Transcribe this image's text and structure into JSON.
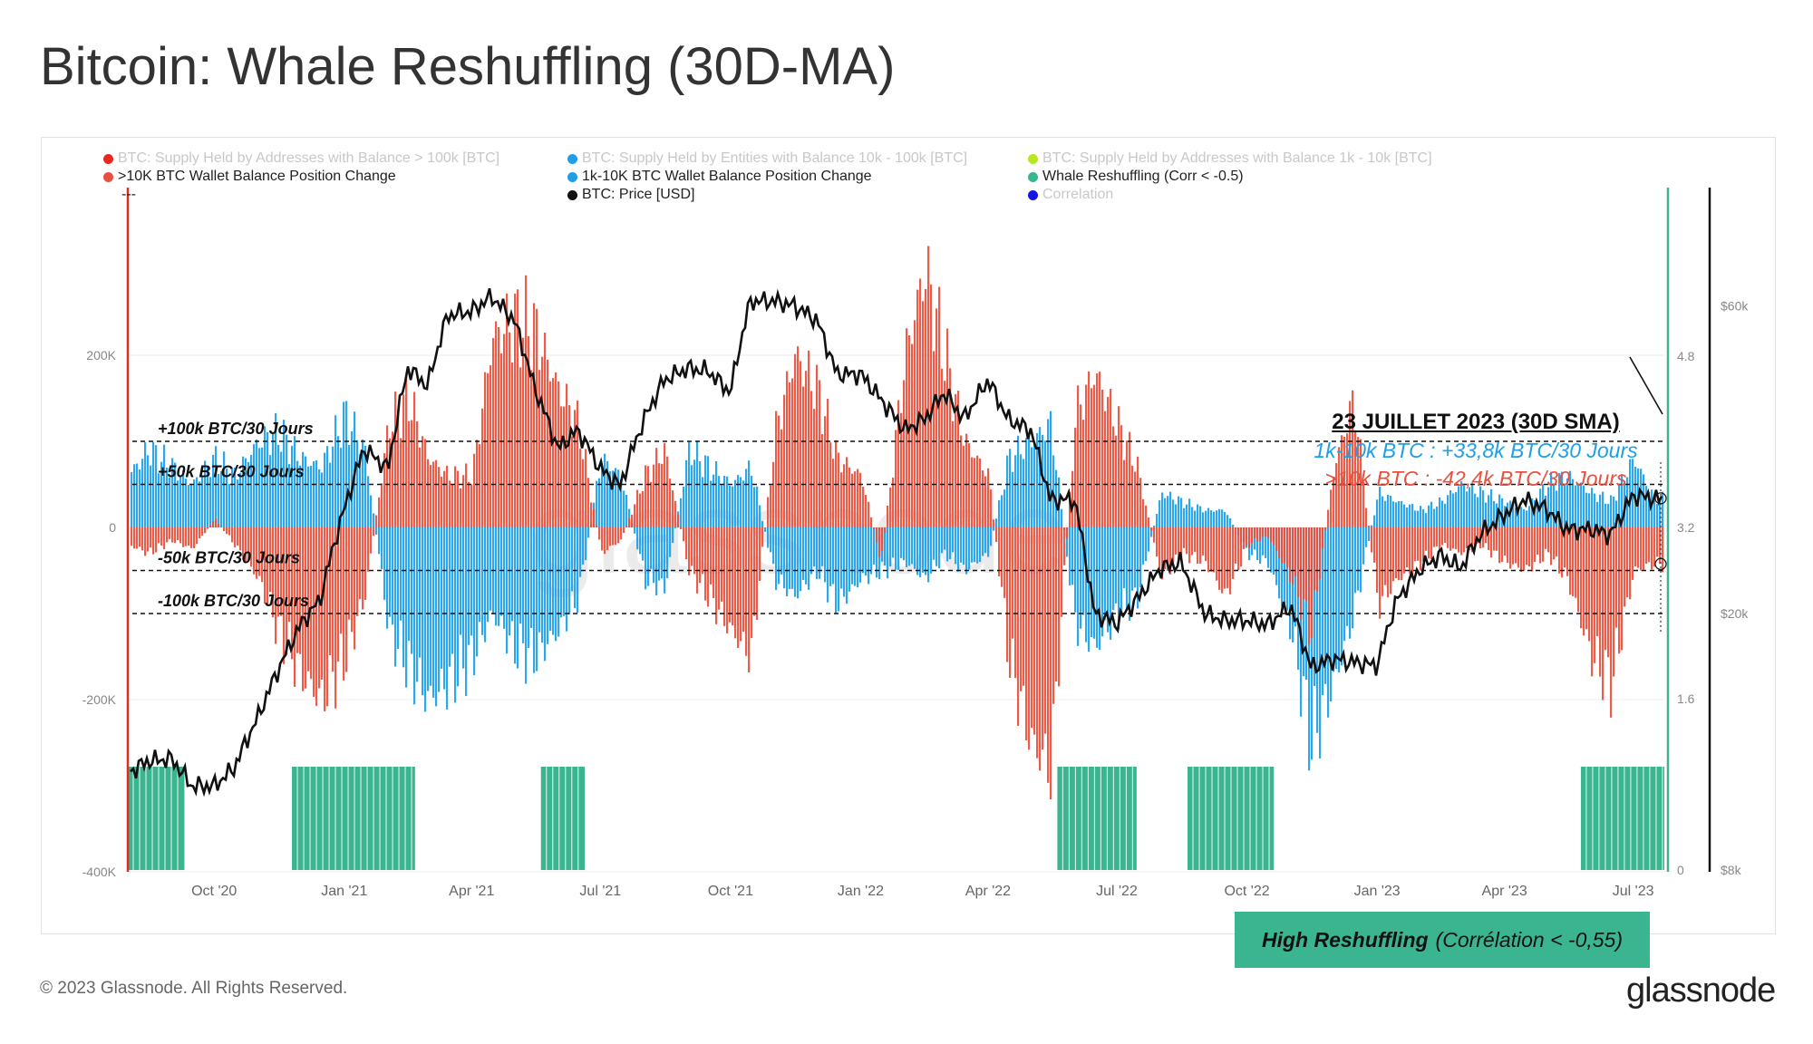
{
  "title": "Bitcoin: Whale Reshuffling (30D-MA)",
  "legend": [
    {
      "label": "BTC: Supply Held by Addresses with Balance > 100k [BTC]",
      "color": "#e8281e",
      "faded": true
    },
    {
      "label": "BTC: Supply Held by Entities with Balance 10k - 100k [BTC]",
      "color": "#1e9fe8",
      "faded": true
    },
    {
      "label": "BTC: Supply Held by Addresses with Balance 1k - 10k [BTC]",
      "color": "#b7e81e",
      "faded": true
    },
    {
      "label": ">10K BTC Wallet Balance Position Change",
      "color": "#e8513d",
      "faded": false
    },
    {
      "label": "1k-10K BTC Wallet Balance Position Change",
      "color": "#1e9fe8",
      "faded": false
    },
    {
      "label": "Whale Reshuffling (Corr < -0.5)",
      "color": "#3bb58f",
      "faded": false
    },
    {
      "label": "---",
      "color": "",
      "faded": false
    },
    {
      "label": "BTC: Price [USD]",
      "color": "#111111",
      "faded": false
    },
    {
      "label": "Correlation",
      "color": "#1414e6",
      "faded": true
    }
  ],
  "annotation": {
    "title": "23 JUILLET 2023 (30D SMA)",
    "blue_line": "1k-10k BTC : +33,8k BTC/30 Jours",
    "red_line": ">10k BTC : -42,4k BTC/30 Jours"
  },
  "badge": {
    "strong": "High Reshuffling",
    "rest": "(Corrélation < -0,55)"
  },
  "footer": {
    "copyright": "© 2023 Glassnode. All Rights Reserved.",
    "logo": "glassnode"
  },
  "watermark": "glassnode",
  "colors": {
    "red": "#e8513d",
    "blue": "#1e9fe8",
    "green": "#3bb58f",
    "price": "#111111",
    "axis_red": "#e8281e",
    "axis_green": "#3bb58f"
  },
  "chart_data": {
    "type": "bar",
    "x_ticks": [
      "Oct '20",
      "Jan '21",
      "Apr '21",
      "Jul '21",
      "Oct '21",
      "Jan '22",
      "Apr '22",
      "Jul '22",
      "Oct '22",
      "Jan '23",
      "Apr '23",
      "Jul '23"
    ],
    "x_range": [
      "2020-08-01",
      "2023-07-23"
    ],
    "y_left": {
      "ticks": [
        "200K",
        "0",
        "-200K",
        "-400K"
      ],
      "tick_values": [
        200000,
        0,
        -200000,
        -400000
      ],
      "range": [
        -400000,
        400000
      ]
    },
    "y_right_inner": {
      "ticks": [
        "4.8",
        "3.2",
        "1.6",
        "0"
      ],
      "tick_values": [
        4.8,
        3.2,
        1.6,
        0
      ],
      "range": [
        0,
        6.4
      ]
    },
    "y_right_price": {
      "ticks": [
        "$60k",
        "$20k",
        "$8k"
      ],
      "tick_values": [
        60000,
        20000,
        8000
      ],
      "scale": "log",
      "range": [
        8000,
        90000
      ]
    },
    "reference_lines": [
      {
        "label": "+100k BTC/30 Jours",
        "value": 100000
      },
      {
        "label": "+50k BTC/30 Jours",
        "value": 50000
      },
      {
        "label": "-50k BTC/30 Jours",
        "value": -50000
      },
      {
        "label": "-100k BTC/30 Jours",
        "value": -100000
      }
    ],
    "series": [
      {
        "name": ">10K BTC Wallet Balance Position Change",
        "color": "#e8513d",
        "dates": [
          "2020-08-01",
          "2020-08-15",
          "2020-09-01",
          "2020-09-15",
          "2020-10-01",
          "2020-10-15",
          "2020-11-01",
          "2020-11-15",
          "2020-12-01",
          "2020-12-15",
          "2021-01-01",
          "2021-01-15",
          "2021-02-01",
          "2021-02-15",
          "2021-03-01",
          "2021-03-15",
          "2021-04-01",
          "2021-04-15",
          "2021-05-01",
          "2021-05-15",
          "2021-06-01",
          "2021-06-15",
          "2021-07-01",
          "2021-07-15",
          "2021-08-01",
          "2021-08-15",
          "2021-09-01",
          "2021-09-15",
          "2021-10-01",
          "2021-10-15",
          "2021-11-01",
          "2021-11-15",
          "2021-12-01",
          "2021-12-15",
          "2022-01-01",
          "2022-01-15",
          "2022-02-01",
          "2022-02-15",
          "2022-03-01",
          "2022-03-15",
          "2022-04-01",
          "2022-04-15",
          "2022-05-01",
          "2022-05-15",
          "2022-06-01",
          "2022-06-15",
          "2022-07-01",
          "2022-07-15",
          "2022-08-01",
          "2022-08-15",
          "2022-09-01",
          "2022-09-15",
          "2022-10-01",
          "2022-10-15",
          "2022-11-01",
          "2022-11-15",
          "2022-12-01",
          "2022-12-15",
          "2023-01-01",
          "2023-01-15",
          "2023-02-01",
          "2023-02-15",
          "2023-03-01",
          "2023-03-15",
          "2023-04-01",
          "2023-04-15",
          "2023-05-01",
          "2023-05-15",
          "2023-06-01",
          "2023-06-15",
          "2023-07-01",
          "2023-07-15",
          "2023-07-23"
        ],
        "values": [
          -20000,
          -30000,
          -15000,
          -25000,
          10000,
          -20000,
          -60000,
          -120000,
          -170000,
          -200000,
          -150000,
          -80000,
          120000,
          150000,
          80000,
          60000,
          60000,
          220000,
          240000,
          230000,
          160000,
          120000,
          -30000,
          -15000,
          60000,
          90000,
          -50000,
          -80000,
          -120000,
          -150000,
          110000,
          200000,
          160000,
          80000,
          60000,
          -40000,
          200000,
          300000,
          200000,
          100000,
          60000,
          -150000,
          -250000,
          -280000,
          130000,
          180000,
          120000,
          70000,
          -60000,
          -30000,
          -40000,
          -80000,
          -20000,
          -10000,
          -60000,
          -120000,
          70000,
          150000,
          -90000,
          -60000,
          -40000,
          -20000,
          -30000,
          -20000,
          -40000,
          -50000,
          -30000,
          -60000,
          -150000,
          -180000,
          -50000,
          -42400,
          -42400
        ]
      },
      {
        "name": "1k-10K BTC Wallet Balance Position Change",
        "color": "#1e9fe8",
        "dates": [
          "2020-08-01",
          "2020-08-15",
          "2020-09-01",
          "2020-09-15",
          "2020-10-01",
          "2020-10-15",
          "2020-11-01",
          "2020-11-15",
          "2020-12-01",
          "2020-12-15",
          "2021-01-01",
          "2021-01-15",
          "2021-02-01",
          "2021-02-15",
          "2021-03-01",
          "2021-03-15",
          "2021-04-01",
          "2021-04-15",
          "2021-05-01",
          "2021-05-15",
          "2021-06-01",
          "2021-06-15",
          "2021-07-01",
          "2021-07-15",
          "2021-08-01",
          "2021-08-15",
          "2021-09-01",
          "2021-09-15",
          "2021-10-01",
          "2021-10-15",
          "2021-11-01",
          "2021-11-15",
          "2021-12-01",
          "2021-12-15",
          "2022-01-01",
          "2022-01-15",
          "2022-02-01",
          "2022-02-15",
          "2022-03-01",
          "2022-03-15",
          "2022-04-01",
          "2022-04-15",
          "2022-05-01",
          "2022-05-15",
          "2022-06-01",
          "2022-06-15",
          "2022-07-01",
          "2022-07-15",
          "2022-08-01",
          "2022-08-15",
          "2022-09-01",
          "2022-09-15",
          "2022-10-01",
          "2022-10-15",
          "2022-11-01",
          "2022-11-15",
          "2022-12-01",
          "2022-12-15",
          "2023-01-01",
          "2023-01-15",
          "2023-02-01",
          "2023-02-15",
          "2023-03-01",
          "2023-03-15",
          "2023-04-01",
          "2023-04-15",
          "2023-05-01",
          "2023-05-15",
          "2023-06-01",
          "2023-06-15",
          "2023-07-01",
          "2023-07-15",
          "2023-07-23"
        ],
        "values": [
          60000,
          90000,
          70000,
          50000,
          80000,
          60000,
          100000,
          110000,
          80000,
          70000,
          130000,
          90000,
          -120000,
          -160000,
          -200000,
          -180000,
          -150000,
          -100000,
          -140000,
          -150000,
          -120000,
          -80000,
          80000,
          60000,
          -60000,
          -70000,
          90000,
          70000,
          50000,
          70000,
          -60000,
          -80000,
          -50000,
          -90000,
          -60000,
          -50000,
          -40000,
          -60000,
          -30000,
          -50000,
          -30000,
          80000,
          100000,
          120000,
          -110000,
          -140000,
          -100000,
          -80000,
          40000,
          30000,
          20000,
          20000,
          -30000,
          -40000,
          -120000,
          -250000,
          -180000,
          -100000,
          40000,
          30000,
          20000,
          30000,
          50000,
          40000,
          30000,
          20000,
          50000,
          60000,
          40000,
          30000,
          80000,
          33800,
          33800
        ]
      },
      {
        "name": "BTC: Price [USD]",
        "color": "#111111",
        "dates": [
          "2020-08-01",
          "2020-08-15",
          "2020-09-01",
          "2020-09-15",
          "2020-10-01",
          "2020-10-15",
          "2020-11-01",
          "2020-11-15",
          "2020-12-01",
          "2020-12-15",
          "2021-01-01",
          "2021-01-15",
          "2021-02-01",
          "2021-02-15",
          "2021-03-01",
          "2021-03-15",
          "2021-04-01",
          "2021-04-15",
          "2021-05-01",
          "2021-05-15",
          "2021-06-01",
          "2021-06-15",
          "2021-07-01",
          "2021-07-15",
          "2021-08-01",
          "2021-08-15",
          "2021-09-01",
          "2021-09-15",
          "2021-10-01",
          "2021-10-15",
          "2021-11-01",
          "2021-11-15",
          "2021-12-01",
          "2021-12-15",
          "2022-01-01",
          "2022-01-15",
          "2022-02-01",
          "2022-02-15",
          "2022-03-01",
          "2022-03-15",
          "2022-04-01",
          "2022-04-15",
          "2022-05-01",
          "2022-05-15",
          "2022-06-01",
          "2022-06-15",
          "2022-07-01",
          "2022-07-15",
          "2022-08-01",
          "2022-08-15",
          "2022-09-01",
          "2022-09-15",
          "2022-10-01",
          "2022-10-15",
          "2022-11-01",
          "2022-11-15",
          "2022-12-01",
          "2022-12-15",
          "2023-01-01",
          "2023-01-15",
          "2023-02-01",
          "2023-02-15",
          "2023-03-01",
          "2023-03-15",
          "2023-04-01",
          "2023-04-15",
          "2023-05-01",
          "2023-05-15",
          "2023-06-01",
          "2023-06-15",
          "2023-07-01",
          "2023-07-15",
          "2023-07-23"
        ],
        "values": [
          11300,
          11800,
          11900,
          10800,
          10800,
          11500,
          13800,
          16300,
          19200,
          21000,
          29000,
          36000,
          33500,
          48000,
          45000,
          58000,
          58800,
          62000,
          57000,
          45000,
          36000,
          38500,
          33500,
          31500,
          40000,
          46000,
          48000,
          47500,
          44000,
          61000,
          61000,
          60000,
          57000,
          47000,
          47000,
          43000,
          38500,
          40000,
          44000,
          40000,
          46000,
          40000,
          38500,
          30000,
          30000,
          20000,
          19300,
          21000,
          23500,
          24000,
          20000,
          19500,
          19500,
          19200,
          20500,
          16500,
          17000,
          16800,
          16600,
          21000,
          23500,
          24600,
          23500,
          26500,
          28500,
          30000,
          29000,
          27000,
          27000,
          26500,
          30500,
          30200,
          30000
        ]
      },
      {
        "name": "Whale Reshuffling (Corr < -0.5)",
        "color": "#3bb58f",
        "periods": [
          [
            "2020-08-01",
            "2020-09-10"
          ],
          [
            "2020-11-25",
            "2021-02-20"
          ],
          [
            "2021-05-20",
            "2021-06-20"
          ],
          [
            "2022-05-20",
            "2022-07-15"
          ],
          [
            "2022-08-20",
            "2022-10-20"
          ],
          [
            "2023-05-25",
            "2023-07-23"
          ]
        ],
        "value": 1
      }
    ]
  }
}
